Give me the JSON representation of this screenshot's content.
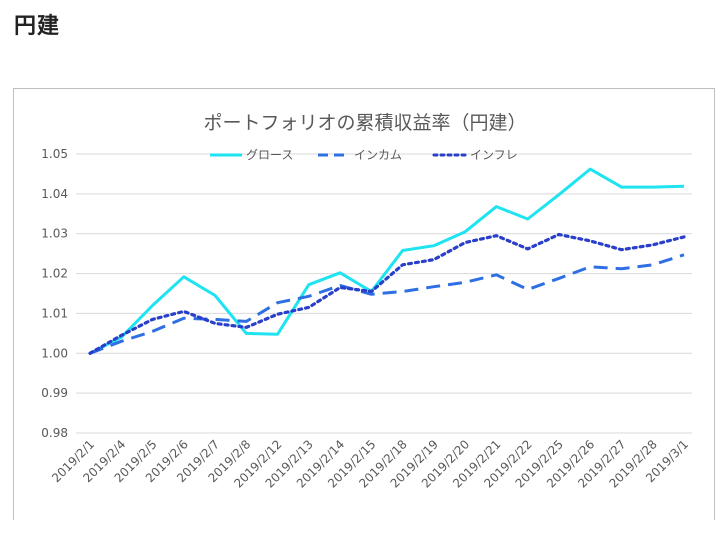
{
  "page": {
    "heading": "円建"
  },
  "chart_data": {
    "type": "line",
    "title": "ポートフォリオの累積収益率（円建）",
    "xlabel": "",
    "ylabel": "",
    "ylim": [
      0.98,
      1.05
    ],
    "yticks": [
      "0.98",
      "0.99",
      "1.00",
      "1.01",
      "1.02",
      "1.03",
      "1.04",
      "1.05"
    ],
    "grid": true,
    "legend": "top",
    "categories": [
      "2019/2/1",
      "2019/2/4",
      "2019/2/5",
      "2019/2/6",
      "2019/2/7",
      "2019/2/8",
      "2019/2/12",
      "2019/2/13",
      "2019/2/14",
      "2019/2/15",
      "2019/2/18",
      "2019/2/19",
      "2019/2/20",
      "2019/2/21",
      "2019/2/22",
      "2019/2/25",
      "2019/2/26",
      "2019/2/27",
      "2019/2/28",
      "2019/3/1"
    ],
    "series": [
      {
        "name": "グロース",
        "color": "#1ee3f0",
        "dash": "solid",
        "values": [
          1.0,
          1.004,
          1.012,
          1.0192,
          1.0145,
          1.005,
          1.0048,
          1.0172,
          1.0202,
          1.0155,
          1.0258,
          1.027,
          1.0305,
          1.0368,
          1.0337,
          1.0398,
          1.0462,
          1.0417,
          1.0417,
          1.0419
        ]
      },
      {
        "name": "インカム",
        "color": "#2f6fe4",
        "dash": "dashed",
        "values": [
          1.0,
          1.003,
          1.0055,
          1.0088,
          1.0085,
          1.008,
          1.0127,
          1.0143,
          1.017,
          1.0148,
          1.0155,
          1.0167,
          1.0178,
          1.0197,
          1.016,
          1.0188,
          1.0217,
          1.0212,
          1.0222,
          1.0247
        ]
      },
      {
        "name": "インフレ",
        "color": "#2a3fc9",
        "dash": "dotted",
        "values": [
          1.0,
          1.0045,
          1.0085,
          1.0105,
          1.0075,
          1.0065,
          1.0098,
          1.0115,
          1.0165,
          1.0155,
          1.0222,
          1.0235,
          1.0278,
          1.0295,
          1.0262,
          1.0298,
          1.0282,
          1.026,
          1.0272,
          1.0292
        ]
      }
    ]
  }
}
